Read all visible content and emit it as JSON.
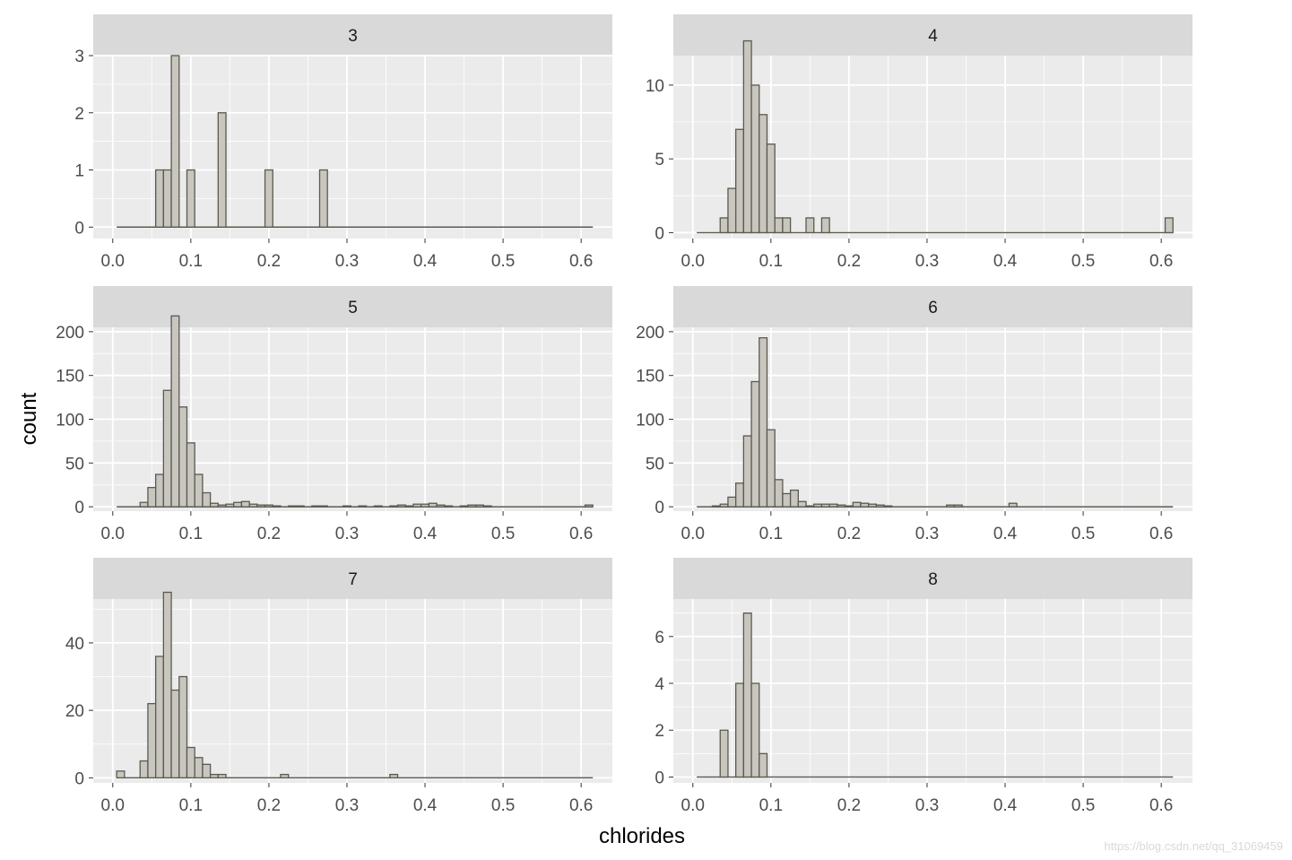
{
  "watermark": "https://blog.csdn.net/qq_31069459",
  "chart_data": {
    "type": "bar",
    "subtype": "faceted-histogram",
    "xlabel": "chlorides",
    "ylabel": "count",
    "grid": true,
    "colors": {
      "panel": "#ebebeb",
      "strip": "#d9d9d9",
      "grid": "#ffffff",
      "bar_fill": "#c8c6be",
      "bar_stroke": "#5a5a50",
      "tick": "#4d4d4d"
    },
    "xlim": [
      -0.025,
      0.64
    ],
    "x_ticks": [
      0.0,
      0.1,
      0.2,
      0.3,
      0.4,
      0.5,
      0.6
    ],
    "x_tick_labels": [
      "0.0",
      "0.1",
      "0.2",
      "0.3",
      "0.4",
      "0.5",
      "0.6"
    ],
    "bin_width": 0.01,
    "bin_start": 0.005,
    "bin_end": 0.615,
    "panels": [
      {
        "label": "3",
        "ylim": [
          -0.2,
          3.0
        ],
        "y_ticks": [
          0,
          1,
          2,
          3
        ],
        "y_tick_labels": [
          "0",
          "1",
          "2",
          "3"
        ],
        "bins": [
          [
            0.06,
            1
          ],
          [
            0.07,
            1
          ],
          [
            0.08,
            3
          ],
          [
            0.1,
            1
          ],
          [
            0.14,
            2
          ],
          [
            0.2,
            1
          ],
          [
            0.27,
            1
          ]
        ]
      },
      {
        "label": "4",
        "ylim": [
          -0.4,
          12.0
        ],
        "y_ticks": [
          0,
          5,
          10
        ],
        "y_tick_labels": [
          "0",
          "5",
          "10"
        ],
        "bins": [
          [
            0.04,
            1
          ],
          [
            0.05,
            3
          ],
          [
            0.06,
            7
          ],
          [
            0.07,
            13
          ],
          [
            0.08,
            10
          ],
          [
            0.09,
            8
          ],
          [
            0.1,
            6
          ],
          [
            0.11,
            1
          ],
          [
            0.12,
            1
          ],
          [
            0.15,
            1
          ],
          [
            0.17,
            1
          ],
          [
            0.61,
            1
          ]
        ]
      },
      {
        "label": "5",
        "ylim": [
          -5,
          205
        ],
        "y_ticks": [
          0,
          50,
          100,
          150,
          200
        ],
        "y_tick_labels": [
          "0",
          "50",
          "100",
          "150",
          "200"
        ],
        "bins": [
          [
            0.04,
            5
          ],
          [
            0.05,
            22
          ],
          [
            0.06,
            37
          ],
          [
            0.07,
            133
          ],
          [
            0.08,
            218
          ],
          [
            0.09,
            114
          ],
          [
            0.1,
            73
          ],
          [
            0.11,
            37
          ],
          [
            0.12,
            16
          ],
          [
            0.13,
            4
          ],
          [
            0.14,
            2
          ],
          [
            0.15,
            3
          ],
          [
            0.16,
            5
          ],
          [
            0.17,
            6
          ],
          [
            0.18,
            3
          ],
          [
            0.19,
            2
          ],
          [
            0.2,
            2
          ],
          [
            0.21,
            1
          ],
          [
            0.23,
            1
          ],
          [
            0.24,
            1
          ],
          [
            0.26,
            1
          ],
          [
            0.27,
            1
          ],
          [
            0.3,
            1
          ],
          [
            0.32,
            1
          ],
          [
            0.34,
            1
          ],
          [
            0.36,
            1
          ],
          [
            0.37,
            2
          ],
          [
            0.38,
            1
          ],
          [
            0.39,
            3
          ],
          [
            0.4,
            3
          ],
          [
            0.41,
            4
          ],
          [
            0.42,
            2
          ],
          [
            0.43,
            1
          ],
          [
            0.45,
            1
          ],
          [
            0.46,
            2
          ],
          [
            0.47,
            2
          ],
          [
            0.48,
            1
          ],
          [
            0.61,
            2
          ]
        ]
      },
      {
        "label": "6",
        "ylim": [
          -5,
          205
        ],
        "y_ticks": [
          0,
          50,
          100,
          150,
          200
        ],
        "y_tick_labels": [
          "0",
          "50",
          "100",
          "150",
          "200"
        ],
        "bins": [
          [
            0.03,
            1
          ],
          [
            0.04,
            3
          ],
          [
            0.05,
            11
          ],
          [
            0.06,
            27
          ],
          [
            0.07,
            81
          ],
          [
            0.08,
            143
          ],
          [
            0.09,
            193
          ],
          [
            0.1,
            88
          ],
          [
            0.11,
            31
          ],
          [
            0.12,
            15
          ],
          [
            0.13,
            19
          ],
          [
            0.14,
            6
          ],
          [
            0.15,
            1
          ],
          [
            0.16,
            3
          ],
          [
            0.17,
            3
          ],
          [
            0.18,
            3
          ],
          [
            0.19,
            2
          ],
          [
            0.2,
            1
          ],
          [
            0.21,
            5
          ],
          [
            0.22,
            4
          ],
          [
            0.23,
            3
          ],
          [
            0.24,
            2
          ],
          [
            0.25,
            1
          ],
          [
            0.33,
            2
          ],
          [
            0.34,
            2
          ],
          [
            0.41,
            4
          ]
        ]
      },
      {
        "label": "7",
        "ylim": [
          -1.5,
          53.0
        ],
        "y_ticks": [
          0,
          20,
          40
        ],
        "y_tick_labels": [
          "0",
          "20",
          "40"
        ],
        "bins": [
          [
            0.01,
            2
          ],
          [
            0.04,
            5
          ],
          [
            0.05,
            22
          ],
          [
            0.06,
            36
          ],
          [
            0.07,
            55
          ],
          [
            0.08,
            26
          ],
          [
            0.09,
            30
          ],
          [
            0.1,
            9
          ],
          [
            0.11,
            6
          ],
          [
            0.12,
            4
          ],
          [
            0.13,
            1
          ],
          [
            0.14,
            1
          ],
          [
            0.22,
            1
          ],
          [
            0.36,
            1
          ]
        ]
      },
      {
        "label": "8",
        "ylim": [
          -0.25,
          7.6
        ],
        "y_ticks": [
          0,
          2,
          4,
          6
        ],
        "y_tick_labels": [
          "0",
          "2",
          "4",
          "6"
        ],
        "bins": [
          [
            0.04,
            2
          ],
          [
            0.06,
            4
          ],
          [
            0.07,
            7
          ],
          [
            0.08,
            4
          ],
          [
            0.09,
            1
          ]
        ]
      }
    ]
  }
}
